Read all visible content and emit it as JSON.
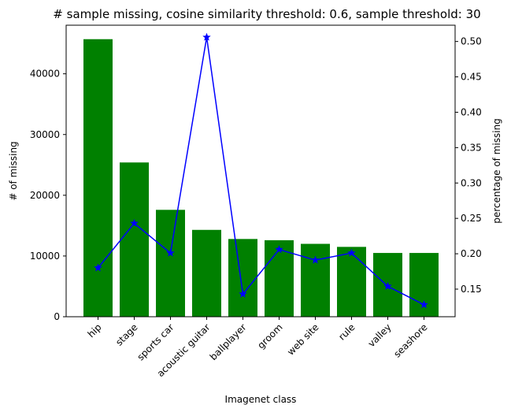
{
  "chart_data": {
    "type": "bar",
    "title": "# sample missing, cosine similarity threshold: 0.6, sample threshold: 30",
    "xlabel": "Imagenet class",
    "ylabel": "# of missing",
    "ylabel_right": "percentage of missing",
    "categories": [
      "hip",
      "stage",
      "sports car",
      "acoustic guitar",
      "ballplayer",
      "groom",
      "web site",
      "rule",
      "valley",
      "seashore"
    ],
    "series": [
      {
        "kind": "bar",
        "axis": "left",
        "color": "#008000",
        "values": [
          45700,
          25400,
          17600,
          14300,
          12800,
          12600,
          12000,
          11500,
          10500,
          10500
        ]
      },
      {
        "kind": "line",
        "axis": "right",
        "color": "#0000ff",
        "marker": "star",
        "values": [
          0.18,
          0.243,
          0.201,
          0.506,
          0.143,
          0.206,
          0.191,
          0.201,
          0.154,
          0.128
        ]
      }
    ],
    "ylim": [
      0,
      48000
    ],
    "ylim_right": [
      0.111,
      0.523
    ],
    "yticks": [
      0,
      10000,
      20000,
      30000,
      40000
    ],
    "yticks_right": [
      0.15,
      0.2,
      0.25,
      0.3,
      0.35,
      0.4,
      0.45,
      0.5
    ],
    "yticks_right_labels": [
      "0.15",
      "0.20",
      "0.25",
      "0.30",
      "0.35",
      "0.40",
      "0.45",
      "0.50"
    ],
    "grid": false
  }
}
